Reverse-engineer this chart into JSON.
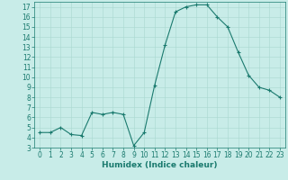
{
  "x_vals": [
    0,
    1,
    2,
    3,
    4,
    5,
    6,
    7,
    8,
    9,
    10,
    11,
    12,
    13,
    14,
    15,
    16,
    17,
    18,
    19,
    20,
    21,
    22,
    23
  ],
  "y_vals": [
    4.5,
    4.5,
    5.0,
    4.3,
    4.2,
    6.5,
    6.3,
    6.5,
    6.3,
    3.2,
    4.5,
    9.2,
    13.2,
    16.5,
    17.0,
    17.2,
    17.2,
    16.0,
    15.0,
    12.5,
    10.2,
    9.0,
    8.7,
    8.0
  ],
  "line_color": "#1a7a6e",
  "marker": "+",
  "marker_size": 3,
  "marker_edge_width": 0.8,
  "line_width": 0.8,
  "bg_color": "#c8ece8",
  "grid_color": "#a8d8d0",
  "xlabel": "Humidex (Indice chaleur)",
  "xlim": [
    -0.5,
    23.5
  ],
  "ylim": [
    3,
    17.5
  ],
  "yticks": [
    3,
    4,
    5,
    6,
    7,
    8,
    9,
    10,
    11,
    12,
    13,
    14,
    15,
    16,
    17
  ],
  "xticks": [
    0,
    1,
    2,
    3,
    4,
    5,
    6,
    7,
    8,
    9,
    10,
    11,
    12,
    13,
    14,
    15,
    16,
    17,
    18,
    19,
    20,
    21,
    22,
    23
  ],
  "tick_fontsize": 5.5,
  "label_fontsize": 6.5
}
